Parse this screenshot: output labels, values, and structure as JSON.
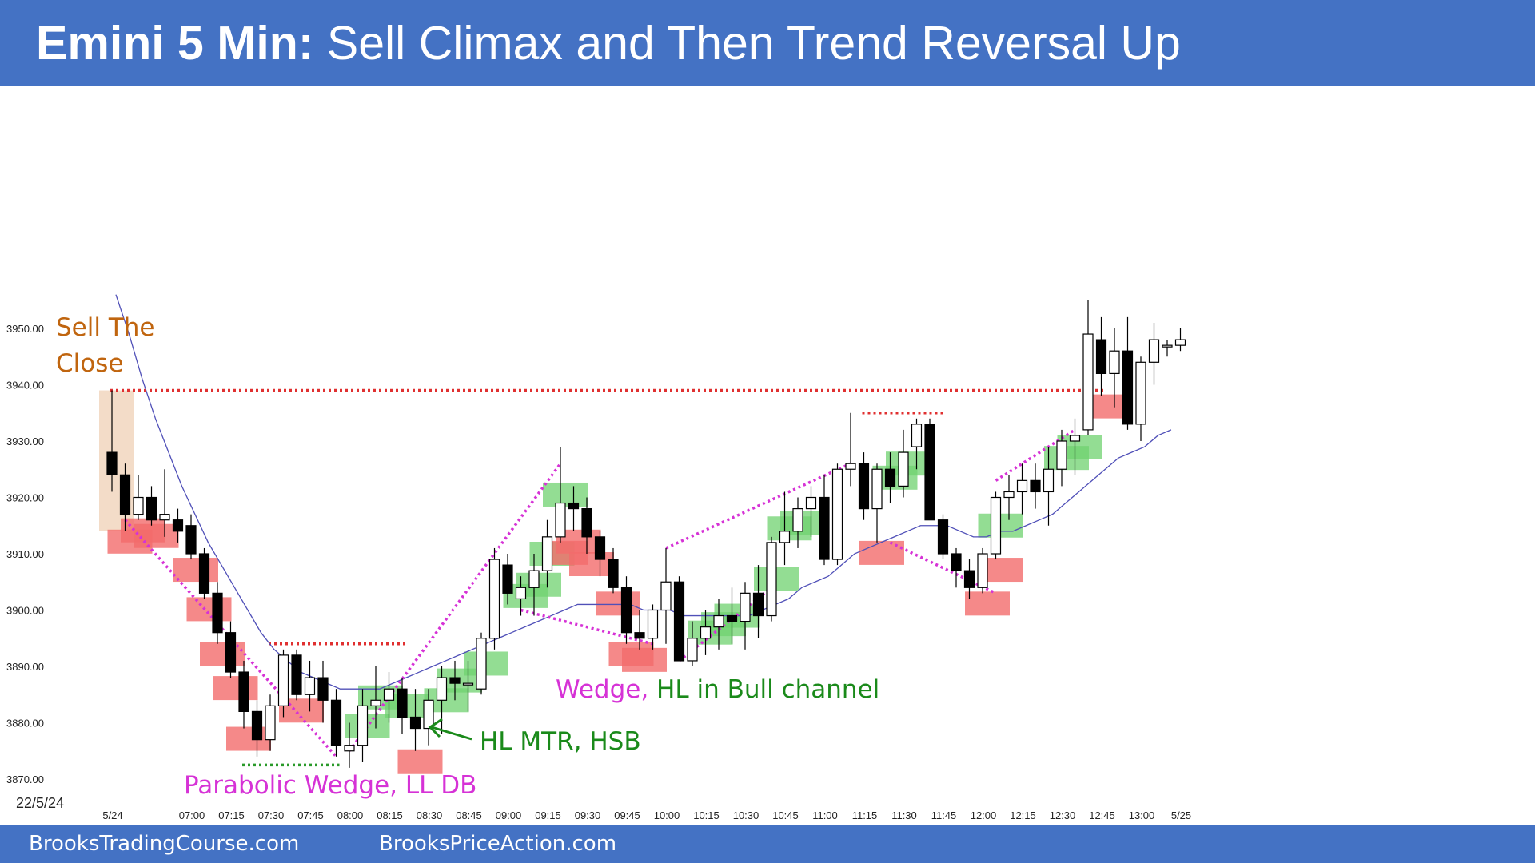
{
  "header": {
    "title_bold": "Emini 5 Min:",
    "title_rest": "Sell Climax and Then Trend Reversal Up"
  },
  "footer": {
    "left_link": "BrooksTradingCourse.com",
    "right_link": "BrooksPriceAction.com"
  },
  "chart_data": {
    "type": "candlestick",
    "title": "Emini 5 Min: Sell Climax and Then Trend Reversal Up",
    "date_label": "22/5/24",
    "ylim": [
      3865,
      3960
    ],
    "yticks": [
      3870,
      3880,
      3890,
      3900,
      3910,
      3920,
      3930,
      3940,
      3950
    ],
    "y_tick_labels": [
      "3870.00",
      "3880.00",
      "3890.00",
      "3900.00",
      "3910.00",
      "3920.00",
      "3930.00",
      "3940.00",
      "3950.00"
    ],
    "x_tick_labels": [
      {
        "bar": 0,
        "label": "5/24"
      },
      {
        "bar": 6,
        "label": "07:00"
      },
      {
        "bar": 9,
        "label": "07:15"
      },
      {
        "bar": 12,
        "label": "07:30"
      },
      {
        "bar": 15,
        "label": "07:45"
      },
      {
        "bar": 18,
        "label": "08:00"
      },
      {
        "bar": 21,
        "label": "08:15"
      },
      {
        "bar": 24,
        "label": "08:30"
      },
      {
        "bar": 27,
        "label": "08:45"
      },
      {
        "bar": 30,
        "label": "09:00"
      },
      {
        "bar": 33,
        "label": "09:15"
      },
      {
        "bar": 36,
        "label": "09:30"
      },
      {
        "bar": 39,
        "label": "09:45"
      },
      {
        "bar": 42,
        "label": "10:00"
      },
      {
        "bar": 45,
        "label": "10:15"
      },
      {
        "bar": 48,
        "label": "10:30"
      },
      {
        "bar": 51,
        "label": "10:45"
      },
      {
        "bar": 54,
        "label": "11:00"
      },
      {
        "bar": 57,
        "label": "11:15"
      },
      {
        "bar": 60,
        "label": "11:30"
      },
      {
        "bar": 63,
        "label": "11:45"
      },
      {
        "bar": 66,
        "label": "12:00"
      },
      {
        "bar": 69,
        "label": "12:15"
      },
      {
        "bar": 72,
        "label": "12:30"
      },
      {
        "bar": 75,
        "label": "12:45"
      },
      {
        "bar": 78,
        "label": "13:00"
      },
      {
        "bar": 81,
        "label": "5/25"
      }
    ],
    "candles": [
      [
        3928,
        3939,
        3921,
        3924
      ],
      [
        3924,
        3926,
        3914,
        3917
      ],
      [
        3917,
        3924,
        3916,
        3920
      ],
      [
        3920,
        3922,
        3915,
        3916
      ],
      [
        3916,
        3925,
        3913,
        3917
      ],
      [
        3916,
        3918,
        3912,
        3914
      ],
      [
        3915,
        3917,
        3909,
        3910
      ],
      [
        3910,
        3911,
        3902,
        3903
      ],
      [
        3903,
        3905,
        3894,
        3896
      ],
      [
        3896,
        3898,
        3888,
        3889
      ],
      [
        3889,
        3891,
        3879,
        3882
      ],
      [
        3882,
        3884,
        3874,
        3877
      ],
      [
        3877,
        3885,
        3875,
        3883
      ],
      [
        3883,
        3893,
        3881,
        3892
      ],
      [
        3892,
        3893,
        3884,
        3885
      ],
      [
        3885,
        3891,
        3882,
        3888
      ],
      [
        3888,
        3891,
        3880,
        3884
      ],
      [
        3884,
        3886,
        3874,
        3876
      ],
      [
        3875,
        3880,
        3872,
        3876
      ],
      [
        3876,
        3886,
        3873,
        3883
      ],
      [
        3883,
        3890,
        3879,
        3884
      ],
      [
        3884,
        3889,
        3880,
        3886
      ],
      [
        3886,
        3888,
        3878,
        3881
      ],
      [
        3881,
        3886,
        3875,
        3879
      ],
      [
        3879,
        3886,
        3876,
        3884
      ],
      [
        3884,
        3890,
        3878,
        3888
      ],
      [
        3888,
        3891,
        3884,
        3887
      ],
      [
        3887,
        3891,
        3882,
        3887
      ],
      [
        3886,
        3896,
        3885,
        3895
      ],
      [
        3895,
        3911,
        3893,
        3909
      ],
      [
        3908,
        3910,
        3901,
        3903
      ],
      [
        3902,
        3906,
        3899,
        3904
      ],
      [
        3904,
        3910,
        3899,
        3907
      ],
      [
        3907,
        3916,
        3904,
        3913
      ],
      [
        3913,
        3929,
        3912,
        3919
      ],
      [
        3919,
        3922,
        3914,
        3918
      ],
      [
        3918,
        3920,
        3910,
        3913
      ],
      [
        3913,
        3914,
        3906,
        3909
      ],
      [
        3909,
        3911,
        3903,
        3904
      ],
      [
        3904,
        3906,
        3894,
        3896
      ],
      [
        3896,
        3900,
        3893,
        3895
      ],
      [
        3895,
        3901,
        3893,
        3900
      ],
      [
        3900,
        3911,
        3894,
        3905
      ],
      [
        3905,
        3906,
        3891,
        3891
      ],
      [
        3891,
        3898,
        3890,
        3895
      ],
      [
        3895,
        3900,
        3892,
        3897
      ],
      [
        3897,
        3902,
        3893,
        3899
      ],
      [
        3899,
        3904,
        3894,
        3898
      ],
      [
        3898,
        3905,
        3893,
        3903
      ],
      [
        3903,
        3908,
        3895,
        3899
      ],
      [
        3899,
        3913,
        3898,
        3912
      ],
      [
        3912,
        3921,
        3908,
        3914
      ],
      [
        3914,
        3920,
        3911,
        3918
      ],
      [
        3918,
        3922,
        3913,
        3920
      ],
      [
        3920,
        3924,
        3908,
        3909
      ],
      [
        3909,
        3926,
        3908,
        3925
      ],
      [
        3925,
        3935,
        3922,
        3926
      ],
      [
        3926,
        3928,
        3916,
        3918
      ],
      [
        3918,
        3926,
        3912,
        3925
      ],
      [
        3925,
        3928,
        3919,
        3922
      ],
      [
        3922,
        3932,
        3920,
        3928
      ],
      [
        3929,
        3934,
        3925,
        3933
      ],
      [
        3933,
        3934,
        3916,
        3916
      ],
      [
        3916,
        3917,
        3909,
        3910
      ],
      [
        3910,
        3911,
        3904,
        3907
      ],
      [
        3907,
        3909,
        3902,
        3904
      ],
      [
        3904,
        3911,
        3903,
        3910
      ],
      [
        3910,
        3921,
        3909,
        3920
      ],
      [
        3920,
        3924,
        3916,
        3921
      ],
      [
        3921,
        3926,
        3917,
        3923
      ],
      [
        3923,
        3926,
        3918,
        3921
      ],
      [
        3921,
        3929,
        3915,
        3925
      ],
      [
        3925,
        3932,
        3922,
        3930
      ],
      [
        3930,
        3934,
        3924,
        3931
      ],
      [
        3932,
        3955,
        3931,
        3949
      ],
      [
        3948,
        3952,
        3938,
        3942
      ],
      [
        3942,
        3950,
        3936,
        3946
      ],
      [
        3946,
        3952,
        3932,
        3933
      ],
      [
        3933,
        3945,
        3930,
        3944
      ],
      [
        3944,
        3951,
        3940,
        3948
      ],
      [
        3947,
        3948,
        3945,
        3947
      ],
      [
        3947,
        3950,
        3946,
        3948
      ]
    ],
    "moving_average": [
      3956,
      3949,
      3941,
      3934,
      3928,
      3922,
      3917,
      3912,
      3908,
      3904,
      3900,
      3896,
      3893,
      3891,
      3889,
      3888,
      3887,
      3886,
      3886,
      3886,
      3886,
      3887,
      3888,
      3889,
      3890,
      3891,
      3892,
      3893,
      3894,
      3895,
      3896,
      3897,
      3898,
      3899,
      3900,
      3901,
      3901,
      3901,
      3901,
      3901,
      3900,
      3900,
      3900,
      3899,
      3899,
      3899,
      3899,
      3899,
      3899,
      3900,
      3901,
      3902,
      3904,
      3905,
      3906,
      3908,
      3910,
      3911,
      3912,
      3913,
      3914,
      3915,
      3915,
      3915,
      3914,
      3913,
      3913,
      3914,
      3914,
      3915,
      3916,
      3917,
      3919,
      3921,
      3923,
      3925,
      3927,
      3928,
      3929,
      3931,
      3932
    ],
    "price_lines": [
      {
        "from_bar": 0,
        "to_bar": 75,
        "price": 3939,
        "style": "dotted",
        "color": "#e03030"
      },
      {
        "from_bar": 12,
        "to_bar": 22,
        "price": 3894,
        "style": "dotted",
        "color": "#e03030"
      },
      {
        "from_bar": 57,
        "to_bar": 63,
        "price": 3935,
        "style": "dotted",
        "color": "#e03030"
      },
      {
        "from_bar": 10,
        "to_bar": 17,
        "price": 3872.5,
        "style": "dotted",
        "color": "#2a9a2a"
      }
    ],
    "wedge_lines": [
      {
        "points": [
          [
            1,
            3916
          ],
          [
            17,
            3874
          ]
        ]
      },
      {
        "points": [
          [
            18,
            3875
          ],
          [
            34,
            3926
          ]
        ]
      },
      {
        "points": [
          [
            31,
            3900
          ],
          [
            41,
            3894
          ]
        ]
      },
      {
        "points": [
          [
            42,
            3911
          ],
          [
            56,
            3926
          ]
        ]
      },
      {
        "points": [
          [
            43,
            3891
          ],
          [
            50,
            3904
          ]
        ]
      },
      {
        "points": [
          [
            59,
            3912
          ],
          [
            67,
            3903
          ]
        ]
      },
      {
        "points": [
          [
            67,
            3923
          ],
          [
            73,
            3932
          ]
        ]
      }
    ],
    "bull_boxes": [
      19,
      20,
      22,
      25,
      26,
      28,
      31,
      32,
      33,
      34,
      45,
      46,
      47,
      50,
      51,
      52,
      59,
      60,
      67,
      72,
      73
    ],
    "bear_boxes": [
      1,
      2,
      3,
      6,
      7,
      8,
      9,
      10,
      14,
      23,
      34,
      35,
      36,
      38,
      39,
      40,
      58,
      66,
      67,
      75
    ],
    "annotations": [
      {
        "text": "Sell The\nClose",
        "color": "#c0650f"
      },
      {
        "text": "Parabolic Wedge, LL DB",
        "color": "#d632d6"
      },
      {
        "text": "HL MTR, HSB",
        "color": "#1a8a1a"
      },
      {
        "text": "Wedge, HL in Bull channel",
        "color": "#d632d6",
        "highlight": "HL in Bull channel",
        "highlight_color": "#1a8a1a"
      }
    ],
    "colors": {
      "bull_candle": "#ffffff",
      "bear_candle": "#000000",
      "bull_box": "#6fd16f",
      "bear_box": "#f26b6b",
      "moving_average": "#5050b8",
      "wedge": "#d632d6",
      "close_box": "#f3dcc8"
    }
  }
}
